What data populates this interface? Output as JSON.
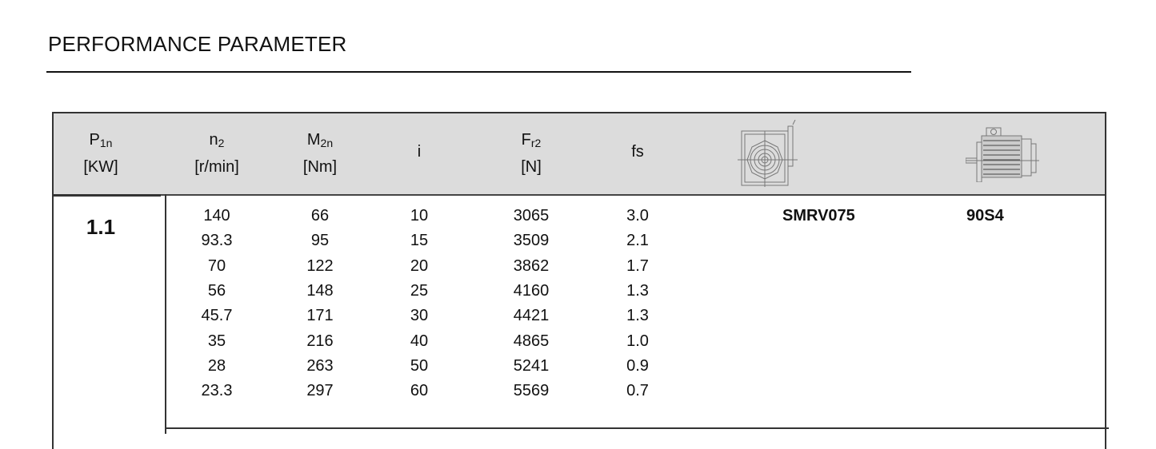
{
  "title": "PERFORMANCE PARAMETER",
  "headers": {
    "p1n": {
      "sym": "P",
      "sub": "1n",
      "unit": "[KW]"
    },
    "n2": {
      "sym": "n",
      "sub": "2",
      "unit": "[r/min]"
    },
    "m2n": {
      "sym": "M",
      "sub": "2n",
      "unit": "[Nm]"
    },
    "i": {
      "sym": "i"
    },
    "fr2": {
      "sym": "F",
      "sub": "r2",
      "unit": "[N]"
    },
    "fs": {
      "sym": "fs"
    },
    "gearbox_icon": "worm-gearbox-drawing-icon",
    "motor_icon": "electric-motor-drawing-icon"
  },
  "power": "1.1",
  "gearbox": "SMRV075",
  "motor": "90S4",
  "rows": [
    {
      "n2": "140",
      "m2n": "66",
      "i": "10",
      "fr2": "3065",
      "fs": "3.0"
    },
    {
      "n2": "93.3",
      "m2n": "95",
      "i": "15",
      "fr2": "3509",
      "fs": "2.1"
    },
    {
      "n2": "70",
      "m2n": "122",
      "i": "20",
      "fr2": "3862",
      "fs": "1.7"
    },
    {
      "n2": "56",
      "m2n": "148",
      "i": "25",
      "fr2": "4160",
      "fs": "1.3"
    },
    {
      "n2": "45.7",
      "m2n": "171",
      "i": "30",
      "fr2": "4421",
      "fs": "1.3"
    },
    {
      "n2": "35",
      "m2n": "216",
      "i": "40",
      "fr2": "4865",
      "fs": "1.0"
    },
    {
      "n2": "28",
      "m2n": "263",
      "i": "50",
      "fr2": "5241",
      "fs": "0.9"
    },
    {
      "n2": "23.3",
      "m2n": "297",
      "i": "60",
      "fr2": "5569",
      "fs": "0.7"
    }
  ]
}
